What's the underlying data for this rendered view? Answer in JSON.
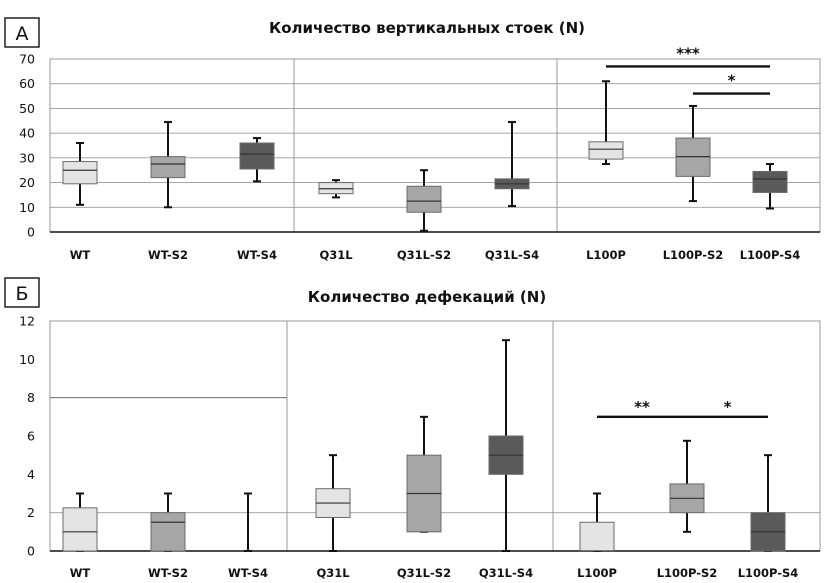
{
  "chart_data": [
    {
      "type": "box",
      "panel_label": "А",
      "title": "Количество вертикальных стоек  (N)",
      "ylim": [
        0,
        70
      ],
      "yticks": [
        0,
        10,
        20,
        30,
        40,
        50,
        60,
        70
      ],
      "grid": true,
      "gridline_values": [
        10,
        20,
        30,
        40,
        50,
        60,
        70
      ],
      "categories": [
        "WT",
        "WT-S2",
        "WT-S4",
        "Q31L",
        "Q31L-S2",
        "Q31L-S4",
        "L100P",
        "L100P-S2",
        "L100P-S4"
      ],
      "groups": [
        [
          0,
          1,
          2
        ],
        [
          3,
          4,
          5
        ],
        [
          6,
          7,
          8
        ]
      ],
      "boxes": [
        {
          "min": 11,
          "q1": 19.5,
          "median": 25,
          "q3": 28.5,
          "max": 36,
          "shade": "#e4e4e4"
        },
        {
          "min": 10,
          "q1": 22,
          "median": 27.5,
          "q3": 30.5,
          "max": 44.5,
          "shade": "#a6a6a6"
        },
        {
          "min": 20.5,
          "q1": 25.5,
          "median": 31.5,
          "q3": 36,
          "max": 38,
          "shade": "#5a5a5a"
        },
        {
          "min": 14,
          "q1": 15.5,
          "median": 17.5,
          "q3": 20,
          "max": 21,
          "shade": "#e4e4e4"
        },
        {
          "min": 0.5,
          "q1": 8,
          "median": 12.5,
          "q3": 18.5,
          "max": 25,
          "shade": "#a6a6a6"
        },
        {
          "min": 10.5,
          "q1": 17.5,
          "median": 19.5,
          "q3": 21.5,
          "max": 44.5,
          "shade": "#5a5a5a"
        },
        {
          "min": 27.5,
          "q1": 29.5,
          "median": 33.5,
          "q3": 36.5,
          "max": 61,
          "shade": "#e4e4e4"
        },
        {
          "min": 12.5,
          "q1": 22.5,
          "median": 30.5,
          "q3": 38,
          "max": 51,
          "shade": "#a6a6a6"
        },
        {
          "min": 9.5,
          "q1": 16,
          "median": 21.5,
          "q3": 24.5,
          "max": 27.5,
          "shade": "#5a5a5a"
        }
      ],
      "significance": [
        {
          "from": 6,
          "to": 8,
          "label": "***",
          "level": 67
        },
        {
          "from": 7,
          "to": 8,
          "label": "*",
          "level": 56
        }
      ]
    },
    {
      "type": "box",
      "panel_label": "Б",
      "title": "Количество дефекаций (N)",
      "ylim": [
        0,
        12
      ],
      "yticks": [
        0,
        2,
        4,
        6,
        8,
        10,
        12
      ],
      "grid": true,
      "gridline_values": [
        2,
        8
      ],
      "categories": [
        "WT",
        "WT-S2",
        "WT-S4",
        "Q31L",
        "Q31L-S2",
        "Q31L-S4",
        "L100P",
        "L100P-S2",
        "L100P-S4"
      ],
      "groups": [
        [
          0,
          1,
          2
        ],
        [
          3,
          4,
          5
        ],
        [
          6,
          7,
          8
        ]
      ],
      "boxes": [
        {
          "min": 0,
          "q1": 0,
          "median": 1,
          "q3": 2.25,
          "max": 3,
          "shade": "#e4e4e4"
        },
        {
          "min": 0,
          "q1": 0,
          "median": 1.5,
          "q3": 2,
          "max": 3,
          "shade": "#a6a6a6"
        },
        {
          "min": 0,
          "q1": 0,
          "median": 0,
          "q3": 0,
          "max": 3,
          "shade": "#5a5a5a"
        },
        {
          "min": 0,
          "q1": 1.75,
          "median": 2.5,
          "q3": 3.25,
          "max": 5,
          "shade": "#e4e4e4"
        },
        {
          "min": 1,
          "q1": 1,
          "median": 3,
          "q3": 5,
          "max": 7,
          "shade": "#a6a6a6"
        },
        {
          "min": 0,
          "q1": 4,
          "median": 5,
          "q3": 6,
          "max": 11,
          "shade": "#5a5a5a"
        },
        {
          "min": 0,
          "q1": 0,
          "median": 0,
          "q3": 1.5,
          "max": 3,
          "shade": "#e4e4e4"
        },
        {
          "min": 1,
          "q1": 2,
          "median": 2.75,
          "q3": 3.5,
          "max": 5.75,
          "shade": "#a6a6a6"
        },
        {
          "min": 0,
          "q1": 0,
          "median": 1,
          "q3": 2,
          "max": 5,
          "shade": "#5a5a5a"
        }
      ],
      "significance": [
        {
          "from": 6,
          "to": 7,
          "label": "**",
          "level": 7
        },
        {
          "from": 7,
          "to": 8,
          "label": "*",
          "level": 7
        }
      ]
    }
  ]
}
